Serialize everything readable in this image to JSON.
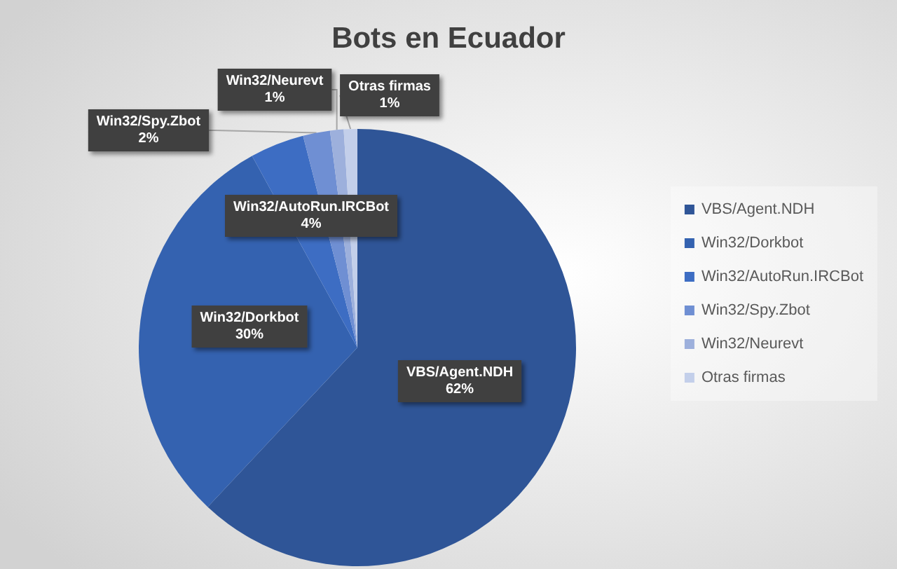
{
  "chart_data": {
    "type": "pie",
    "title": "Bots en Ecuador",
    "categories": [
      "VBS/Agent.NDH",
      "Win32/Dorkbot",
      "Win32/AutoRun.IRCBot",
      "Win32/Spy.Zbot",
      "Win32/Neurevt",
      "Otras firmas"
    ],
    "values": [
      62,
      30,
      4,
      2,
      1,
      1
    ],
    "colors": [
      "#2f5597",
      "#3462b0",
      "#3d6dc3",
      "#6f8fd3",
      "#9db0dc",
      "#c3cfea"
    ],
    "value_labels": [
      "62%",
      "30%",
      "4%",
      "2%",
      "1%",
      "1%"
    ],
    "legend": "right"
  }
}
